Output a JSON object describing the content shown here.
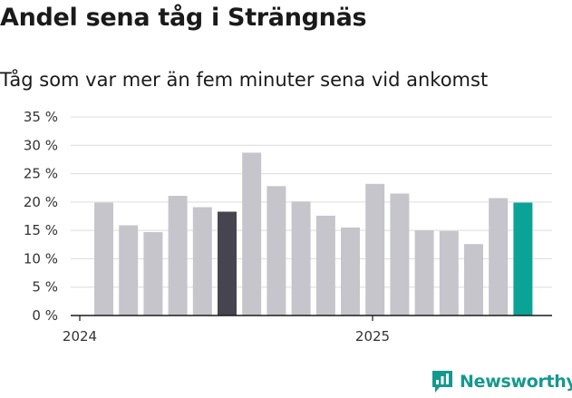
{
  "title": "Andel sena tåg i Strängnäs",
  "subtitle": "Tåg som var mer än fem minuter sena vid ankomst",
  "brand": "Newsworthy",
  "colors": {
    "default": "#c6c5cc",
    "dark": "#46454f",
    "accent": "#0aa395",
    "grid": "#dcdcdc",
    "axis": "#1a1a1a",
    "brand": "#15998e"
  },
  "chart_data": {
    "type": "bar",
    "ylim": [
      0,
      35
    ],
    "yticks": [
      "35 %",
      "30 %",
      "25 %",
      "20 %",
      "15 %",
      "10 %",
      "5 %",
      "0 %"
    ],
    "ytick_values": [
      35,
      30,
      25,
      20,
      15,
      10,
      5,
      0
    ],
    "xtick_labels": [
      {
        "label": "2024",
        "index": 0
      },
      {
        "label": "2025",
        "index": 12
      }
    ],
    "grid": true,
    "values": [
      19.9,
      15.9,
      14.7,
      21.1,
      19.1,
      18.3,
      28.7,
      22.8,
      20.1,
      17.6,
      15.5,
      23.2,
      21.5,
      15.0,
      14.9,
      12.6,
      20.7,
      19.9
    ],
    "highlight": {
      "5": "dark",
      "17": "accent"
    }
  }
}
